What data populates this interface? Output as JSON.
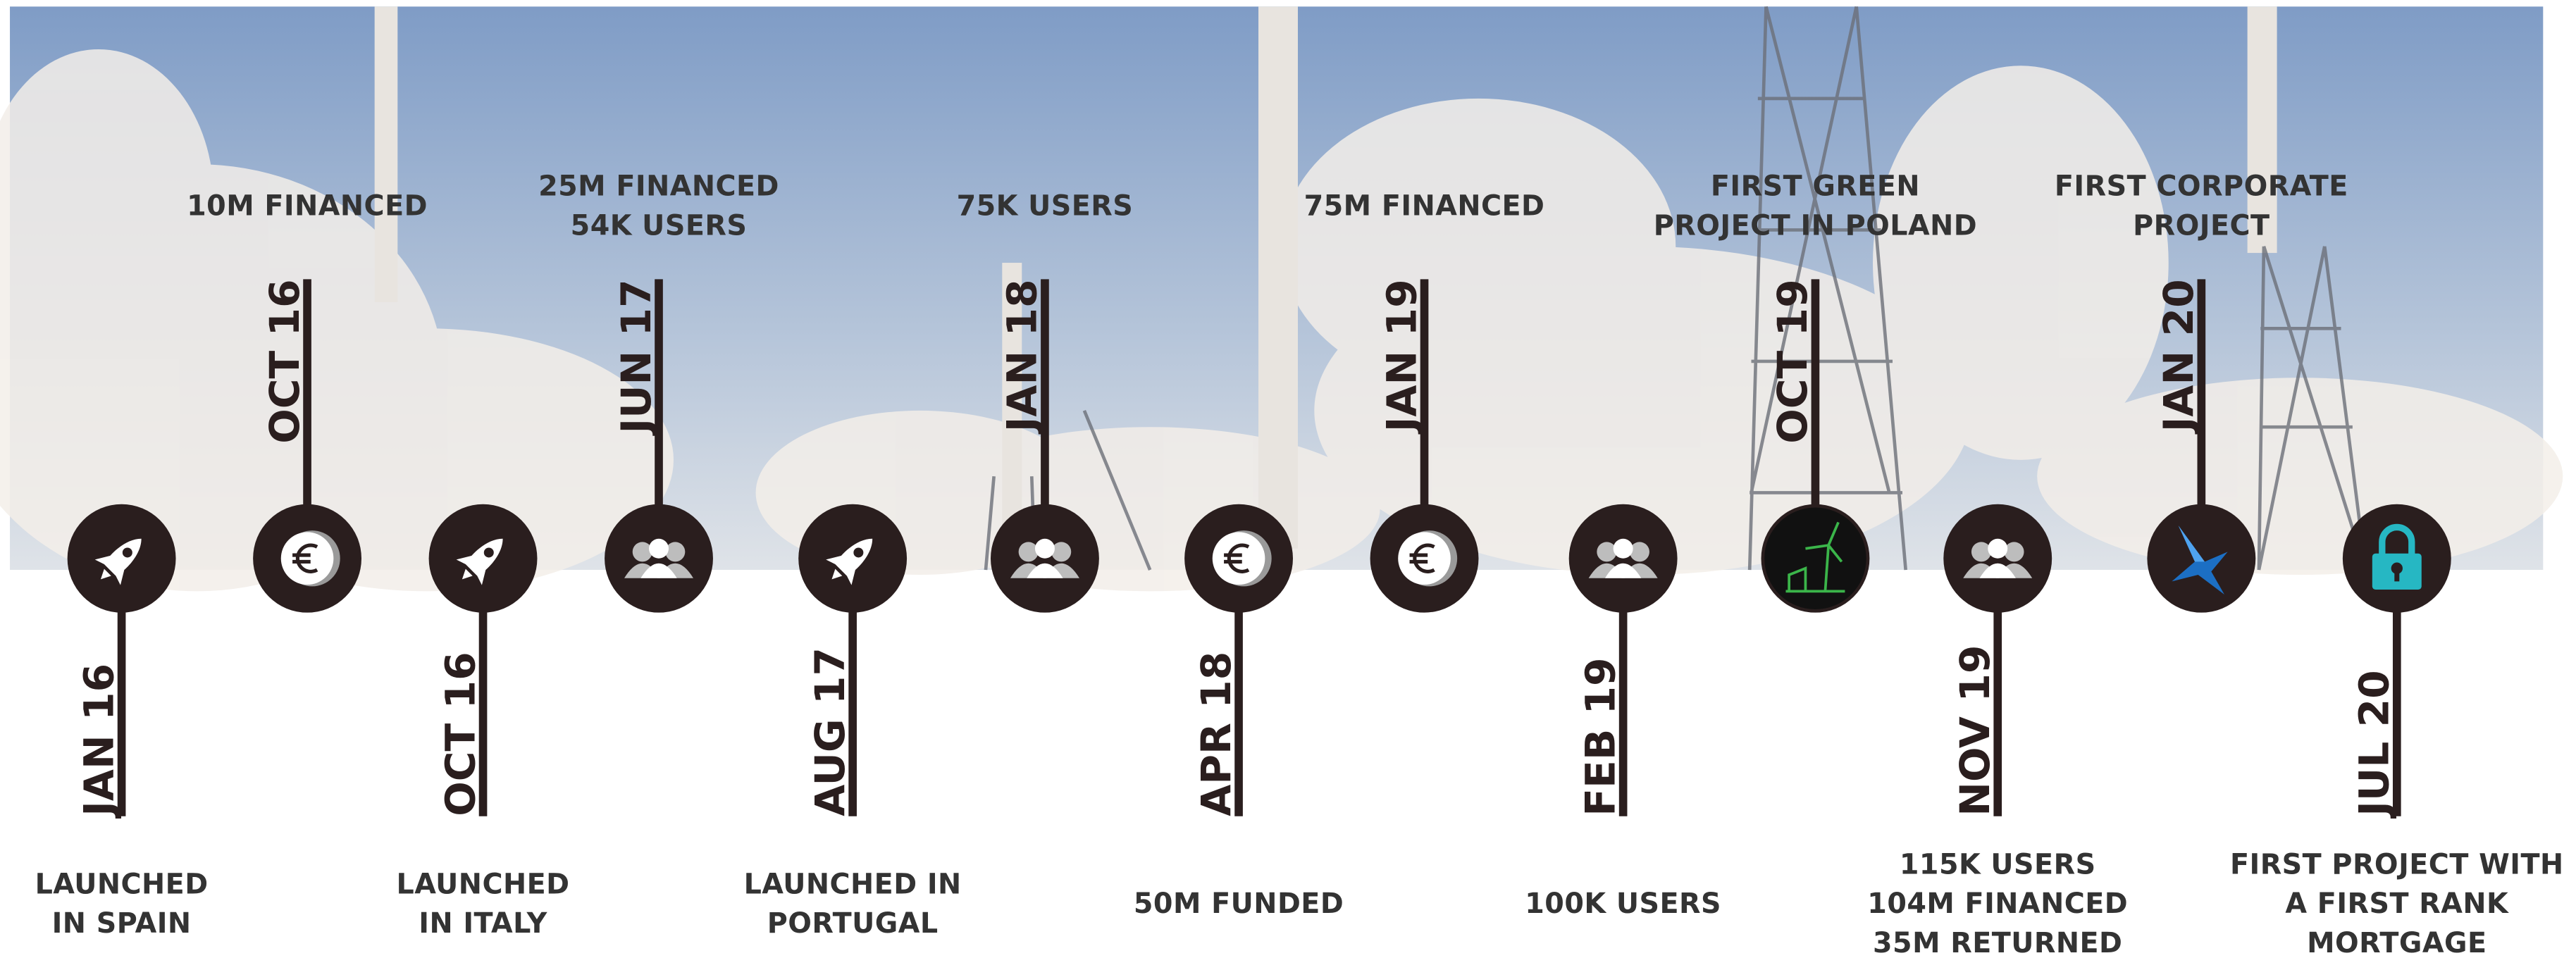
{
  "milestones": [
    {
      "date": "JAN 16",
      "side": "bottom",
      "icon": "rocket",
      "label": [
        "LAUNCHED",
        "IN SPAIN"
      ]
    },
    {
      "date": "OCT 16",
      "side": "top",
      "icon": "euro",
      "label": [
        "10M FINANCED"
      ]
    },
    {
      "date": "OCT 16",
      "side": "bottom",
      "icon": "rocket",
      "label": [
        "LAUNCHED",
        "IN ITALY"
      ]
    },
    {
      "date": "JUN 17",
      "side": "top",
      "icon": "users",
      "label": [
        "25M FINANCED",
        "54K USERS"
      ]
    },
    {
      "date": "AUG 17",
      "side": "bottom",
      "icon": "rocket",
      "label": [
        "LAUNCHED IN",
        "PORTUGAL"
      ]
    },
    {
      "date": "JAN 18",
      "side": "top",
      "icon": "users",
      "label": [
        "75K USERS"
      ]
    },
    {
      "date": "APR 18",
      "side": "bottom",
      "icon": "euro",
      "label": [
        "50M FUNDED"
      ]
    },
    {
      "date": "JAN 19",
      "side": "top",
      "icon": "euro",
      "label": [
        "75M FINANCED"
      ]
    },
    {
      "date": "FEB 19",
      "side": "bottom",
      "icon": "users",
      "label": [
        "100K USERS"
      ]
    },
    {
      "date": "OCT 19",
      "side": "top",
      "icon": "windmill",
      "label": [
        "FIRST GREEN",
        "PROJECT IN POLAND"
      ]
    },
    {
      "date": "NOV 19",
      "side": "bottom",
      "icon": "users",
      "label": [
        "115K USERS",
        "104M FINANCED",
        "35M RETURNED"
      ]
    },
    {
      "date": "JAN 20",
      "side": "top",
      "icon": "bird",
      "label": [
        "FIRST CORPORATE",
        "PROJECT"
      ]
    },
    {
      "date": "JUL 20",
      "side": "bottom",
      "icon": "lock",
      "label": [
        "FIRST PROJECT WITH",
        "A FIRST RANK",
        "MORTGAGE"
      ]
    }
  ]
}
